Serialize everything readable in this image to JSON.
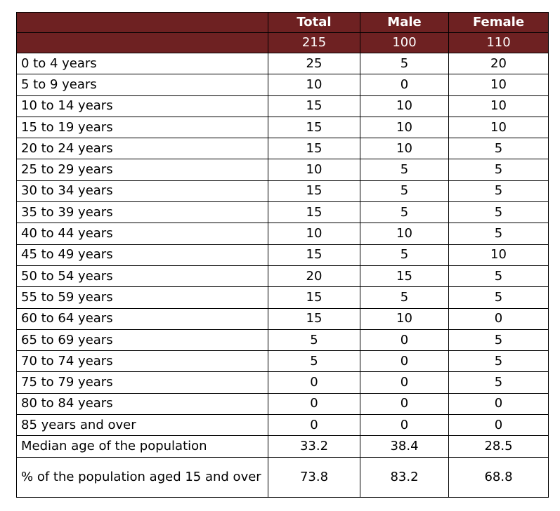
{
  "chart_data": {
    "type": "table",
    "columns": [
      "",
      "Total",
      "Male",
      "Female"
    ],
    "totals": [
      "",
      "215",
      "100",
      "110"
    ],
    "rows": [
      [
        "0 to 4 years",
        "25",
        "5",
        "20"
      ],
      [
        "5 to 9 years",
        "10",
        "0",
        "10"
      ],
      [
        "10 to 14 years",
        "15",
        "10",
        "10"
      ],
      [
        "15 to 19 years",
        "15",
        "10",
        "10"
      ],
      [
        "20 to 24 years",
        "15",
        "10",
        "5"
      ],
      [
        "25 to 29 years",
        "10",
        "5",
        "5"
      ],
      [
        "30 to 34 years",
        "15",
        "5",
        "5"
      ],
      [
        "35 to 39 years",
        "15",
        "5",
        "5"
      ],
      [
        "40 to 44 years",
        "10",
        "10",
        "5"
      ],
      [
        "45 to 49 years",
        "15",
        "5",
        "10"
      ],
      [
        "50 to 54 years",
        "20",
        "15",
        "5"
      ],
      [
        "55 to 59 years",
        "15",
        "5",
        "5"
      ],
      [
        "60 to 64 years",
        "15",
        "10",
        "0"
      ],
      [
        "65 to 69 years",
        "5",
        "0",
        "5"
      ],
      [
        "70 to 74 years",
        "5",
        "0",
        "5"
      ],
      [
        "75 to 79 years",
        "0",
        "0",
        "5"
      ],
      [
        "80 to 84 years",
        "0",
        "0",
        "0"
      ],
      [
        "85 years and over",
        "0",
        "0",
        "0"
      ],
      [
        "Median age of the population",
        "33.2",
        "38.4",
        "28.5"
      ],
      [
        "% of the population aged 15 and over",
        "73.8",
        "83.2",
        "68.8"
      ]
    ]
  },
  "colors": {
    "header_bg": "#6e2122",
    "header_text": "#ffffff",
    "border": "#000000"
  }
}
